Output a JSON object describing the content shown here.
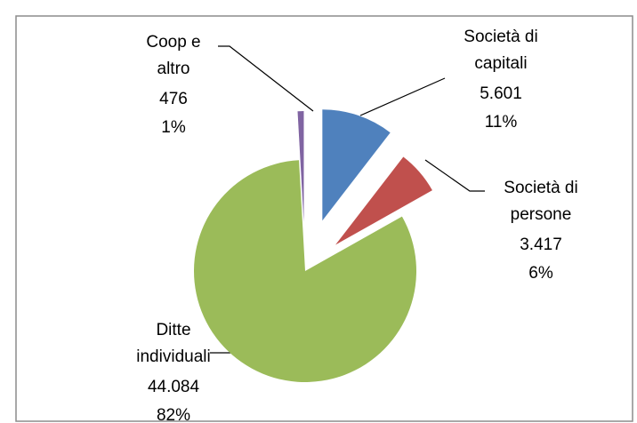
{
  "chart_data": {
    "type": "pie",
    "categories": [
      "Società di capitali",
      "Società di persone",
      "Ditte individuali",
      "Coop e altro"
    ],
    "label_lines": [
      [
        "Società di",
        "capitali"
      ],
      [
        "Società di",
        "persone"
      ],
      [
        "Ditte",
        "individuali"
      ],
      [
        "Coop e",
        "altro"
      ]
    ],
    "values": [
      5601,
      3417,
      44084,
      476
    ],
    "value_labels": [
      "5.601",
      "3.417",
      "44.084",
      "476"
    ],
    "percent_labels": [
      "11%",
      "6%",
      "82%",
      "1%"
    ],
    "colors": [
      "#4f81bd",
      "#c0504d",
      "#9bbb59",
      "#8064a2"
    ],
    "start_angle": 0,
    "direction": "clockwise"
  }
}
